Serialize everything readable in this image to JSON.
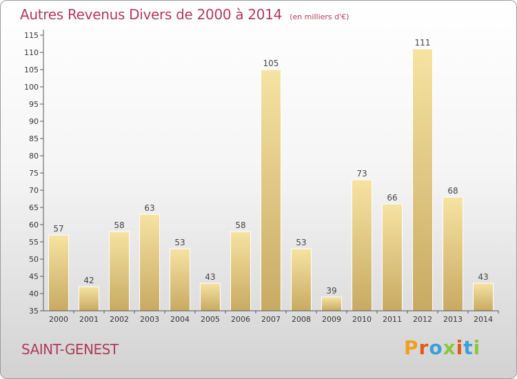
{
  "chart_data": {
    "type": "bar",
    "title": "Autres Revenus Divers de 2000 à 2014",
    "subtitle": "(en milliers d'€)",
    "categories": [
      "2000",
      "2001",
      "2002",
      "2003",
      "2004",
      "2005",
      "2006",
      "2007",
      "2008",
      "2009",
      "2010",
      "2011",
      "2012",
      "2013",
      "2014"
    ],
    "values": [
      57,
      42,
      58,
      63,
      53,
      43,
      58,
      105,
      53,
      39,
      73,
      66,
      111,
      68,
      43
    ],
    "data_labels": [
      "57",
      "42",
      "58",
      "63",
      "53",
      "43",
      "58",
      "105",
      "53",
      "39",
      "73",
      "66",
      "111",
      "68",
      "43"
    ],
    "ylim": [
      35,
      115
    ],
    "yticks": [
      35,
      40,
      45,
      50,
      55,
      60,
      65,
      70,
      75,
      80,
      85,
      90,
      95,
      100,
      105,
      110,
      115
    ],
    "grid": false,
    "legend": "none",
    "colors": {
      "bar_light": "#f6e3a2",
      "bar_dark": "#c8aa62",
      "title": "#b03a5a",
      "axis": "#555555"
    }
  },
  "footer": {
    "place": "SAINT-GENEST",
    "brand": "Proxiti"
  },
  "brand_colors": [
    "#f0a020",
    "#e05a1a",
    "#3aa0d8",
    "#8cc63f",
    "#e05a1a",
    "#3aa0d8",
    "#8cc63f"
  ]
}
